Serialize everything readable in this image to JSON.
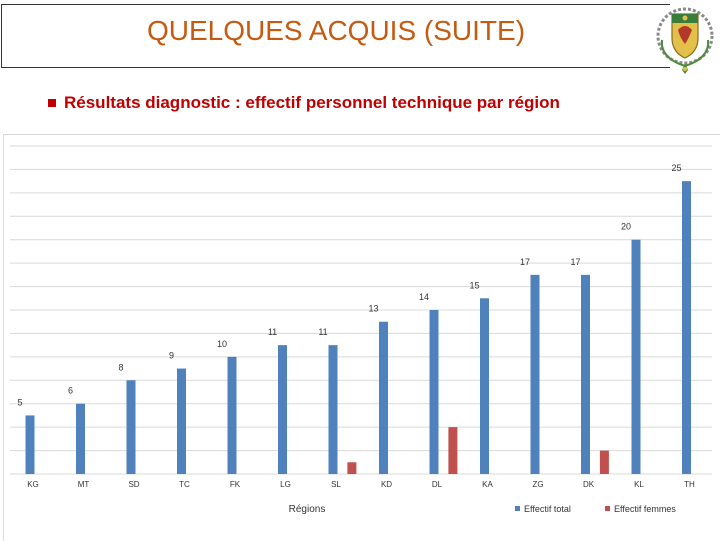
{
  "header": {
    "title": "QUELQUES ACQUIS (SUITE)",
    "subtitle": "Résultats diagnostic : effectif personnel technique par région",
    "emblem_icon": "senegal-coat-of-arms"
  },
  "chart_data": {
    "type": "bar",
    "categories": [
      "KG",
      "MT",
      "SD",
      "TC",
      "FK",
      "LG",
      "SL",
      "KD",
      "DL",
      "KA",
      "ZG",
      "DK",
      "KL",
      "TH"
    ],
    "series": [
      {
        "name": "Effectif total",
        "color": "#4f81bd",
        "values": [
          5,
          6,
          8,
          9,
          10,
          11,
          11,
          13,
          14,
          15,
          17,
          17,
          20,
          25
        ],
        "labels": [
          "5",
          "6",
          "8",
          "9",
          "10",
          "11",
          "11",
          "13",
          "14",
          "15",
          "17",
          "17",
          "20",
          "25"
        ]
      },
      {
        "name": "Effectif femmes",
        "color": "#c0504d",
        "values": [
          0,
          0,
          0,
          0,
          0,
          0,
          1,
          0,
          4,
          0,
          0,
          2,
          0,
          0
        ],
        "labels": []
      }
    ],
    "title": "",
    "xlabel": "Régions",
    "ylabel": "",
    "ylim": [
      0,
      28
    ],
    "grid": true,
    "legend": "bottom-right"
  }
}
